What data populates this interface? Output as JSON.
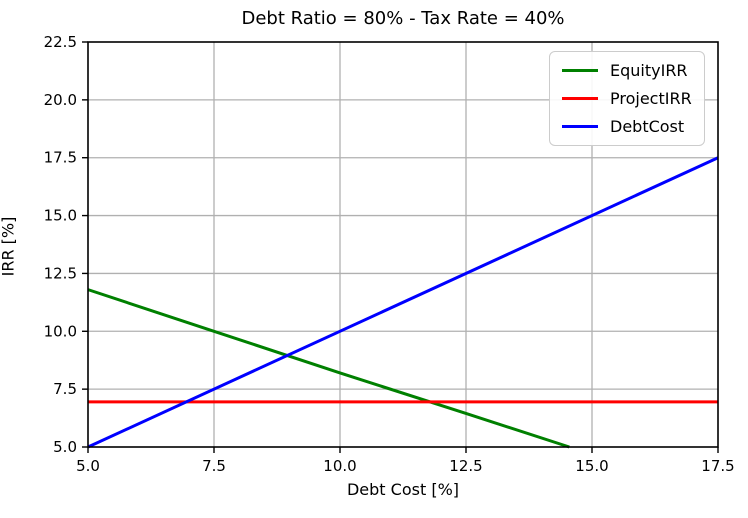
{
  "chart_data": {
    "type": "line",
    "title": "Debt Ratio = 80% - Tax Rate = 40%",
    "xlabel": "Debt Cost [%]",
    "ylabel": "IRR [%]",
    "xlim": [
      5.0,
      17.5
    ],
    "ylim": [
      5.0,
      22.5
    ],
    "xticks": [
      5.0,
      7.5,
      10.0,
      12.5,
      15.0,
      17.5
    ],
    "yticks": [
      5.0,
      7.5,
      10.0,
      12.5,
      15.0,
      17.5,
      20.0,
      22.5
    ],
    "grid": true,
    "grid_color": "#b0b0b0",
    "legend_position": "upper right",
    "series": [
      {
        "name": "EquityIRR",
        "color": "#008000",
        "points": [
          [
            5.0,
            11.8
          ],
          [
            7.5,
            10.0
          ],
          [
            10.0,
            8.2
          ],
          [
            12.5,
            6.45
          ],
          [
            14.55,
            5.0
          ]
        ]
      },
      {
        "name": "ProjectIRR",
        "color": "#ff0000",
        "points": [
          [
            5.0,
            6.95
          ],
          [
            17.5,
            6.95
          ]
        ]
      },
      {
        "name": "DebtCost",
        "color": "#0000ff",
        "points": [
          [
            5.0,
            5.0
          ],
          [
            17.5,
            17.5
          ]
        ]
      }
    ]
  }
}
